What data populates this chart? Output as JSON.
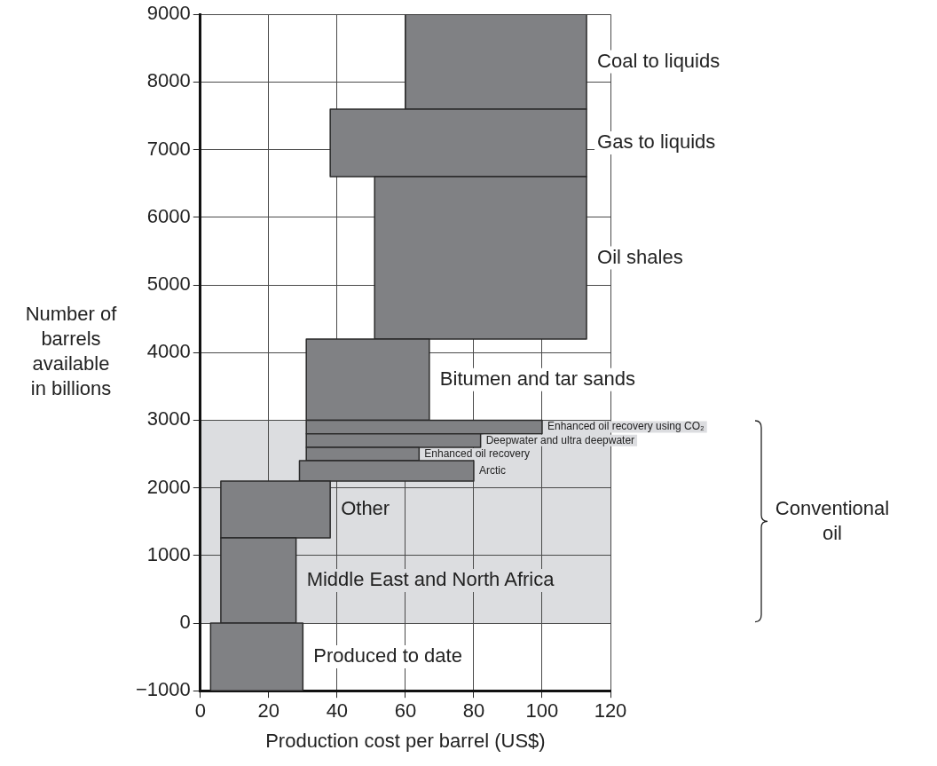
{
  "chart_data": {
    "type": "area",
    "xlabel": "Production cost per barrel (US$)",
    "ylabel": "Number of barrels available in billions",
    "xlim": [
      0,
      120
    ],
    "xticks": [
      0,
      20,
      40,
      60,
      80,
      100,
      120
    ],
    "ylim": [
      -1000,
      9000
    ],
    "yticks": [
      {
        "value": -1000,
        "label": "−1000"
      },
      0,
      1000,
      2000,
      3000,
      4000,
      5000,
      6000,
      7000,
      8000,
      9000
    ],
    "grid": true,
    "legend": false,
    "marker": "none",
    "bands": [
      {
        "axis": "y",
        "from": 0,
        "to": 3000,
        "color": "#dcdde0"
      }
    ],
    "annotations": [
      "Conventional oil"
    ],
    "series": [
      {
        "name": "Produced to date",
        "color": "#808184",
        "x": [
          3,
          30,
          30,
          3,
          3
        ],
        "values": [
          -1000,
          -1000,
          0,
          0,
          -1000
        ]
      },
      {
        "name": "Middle East and North Africa",
        "color": "#808184",
        "x": [
          6,
          28,
          28,
          6,
          6
        ],
        "values": [
          0,
          0,
          1260,
          1260,
          0
        ]
      },
      {
        "name": "Other",
        "color": "#808184",
        "x": [
          6,
          38,
          38,
          6,
          6
        ],
        "values": [
          1260,
          1260,
          2100,
          2100,
          1260
        ]
      },
      {
        "name": "Arctic",
        "color": "#808184",
        "x": [
          29,
          80,
          80,
          29,
          29
        ],
        "values": [
          2100,
          2100,
          2400,
          2400,
          2100
        ]
      },
      {
        "name": "Enhanced oil recovery",
        "color": "#808184",
        "x": [
          31,
          64,
          64,
          31,
          31
        ],
        "values": [
          2400,
          2400,
          2600,
          2600,
          2400
        ]
      },
      {
        "name": "Deepwater and ultra deepwater",
        "color": "#808184",
        "x": [
          31,
          82,
          82,
          31,
          31
        ],
        "values": [
          2600,
          2600,
          2800,
          2800,
          2600
        ]
      },
      {
        "name": "Enhanced oil recovery using CO₂",
        "color": "#808184",
        "x": [
          31,
          100,
          100,
          31,
          31
        ],
        "values": [
          2800,
          2800,
          3000,
          3000,
          2800
        ]
      },
      {
        "name": "Bitumen and tar sands",
        "color": "#808184",
        "x": [
          31,
          67,
          67,
          31,
          31
        ],
        "values": [
          3000,
          3000,
          4200,
          4200,
          3000
        ]
      },
      {
        "name": "Oil shales",
        "color": "#808184",
        "x": [
          51,
          113,
          113,
          51,
          51
        ],
        "values": [
          4200,
          4200,
          6600,
          6600,
          4200
        ]
      },
      {
        "name": "Gas to liquids",
        "color": "#808184",
        "x": [
          38,
          113,
          113,
          38,
          38
        ],
        "values": [
          6600,
          6600,
          7600,
          7600,
          6600
        ]
      },
      {
        "name": "Coal to liquids",
        "color": "#808184",
        "x": [
          60,
          113,
          113,
          60,
          60
        ],
        "values": [
          7600,
          7600,
          9000,
          9000,
          7600
        ]
      }
    ]
  }
}
